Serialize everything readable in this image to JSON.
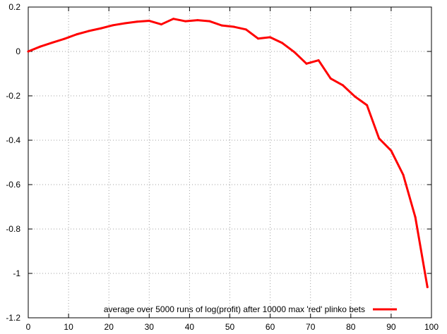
{
  "chart_data": {
    "type": "line",
    "title": "",
    "xlabel": "",
    "ylabel": "",
    "xlim": [
      0,
      100
    ],
    "ylim": [
      -1.2,
      0.2
    ],
    "x_ticks": [
      "0",
      "10",
      "20",
      "30",
      "40",
      "50",
      "60",
      "70",
      "80",
      "90",
      "100"
    ],
    "y_ticks": [
      "0.2",
      "0",
      "-0.2",
      "-0.4",
      "-0.6",
      "-0.8",
      "-1",
      "-1.2"
    ],
    "grid": true,
    "legend_position": "bottom-right",
    "series": [
      {
        "name": "average over 5000 runs of log(profit) after 10000 max 'red' plinko bets",
        "color": "#ff0000",
        "x": [
          0,
          3,
          6,
          9,
          12,
          15,
          18,
          21,
          24,
          27,
          30,
          33,
          36,
          39,
          42,
          45,
          48,
          51,
          54,
          57,
          60,
          63,
          66,
          69,
          72,
          75,
          78,
          81,
          84,
          87,
          90,
          93,
          96,
          99
        ],
        "y": [
          0.0,
          0.022,
          0.04,
          0.057,
          0.077,
          0.092,
          0.104,
          0.118,
          0.127,
          0.134,
          0.138,
          0.122,
          0.147,
          0.136,
          0.141,
          0.136,
          0.117,
          0.111,
          0.099,
          0.058,
          0.064,
          0.038,
          -0.003,
          -0.055,
          -0.04,
          -0.122,
          -0.152,
          -0.203,
          -0.242,
          -0.392,
          -0.447,
          -0.556,
          -0.747,
          -1.062
        ]
      }
    ]
  }
}
